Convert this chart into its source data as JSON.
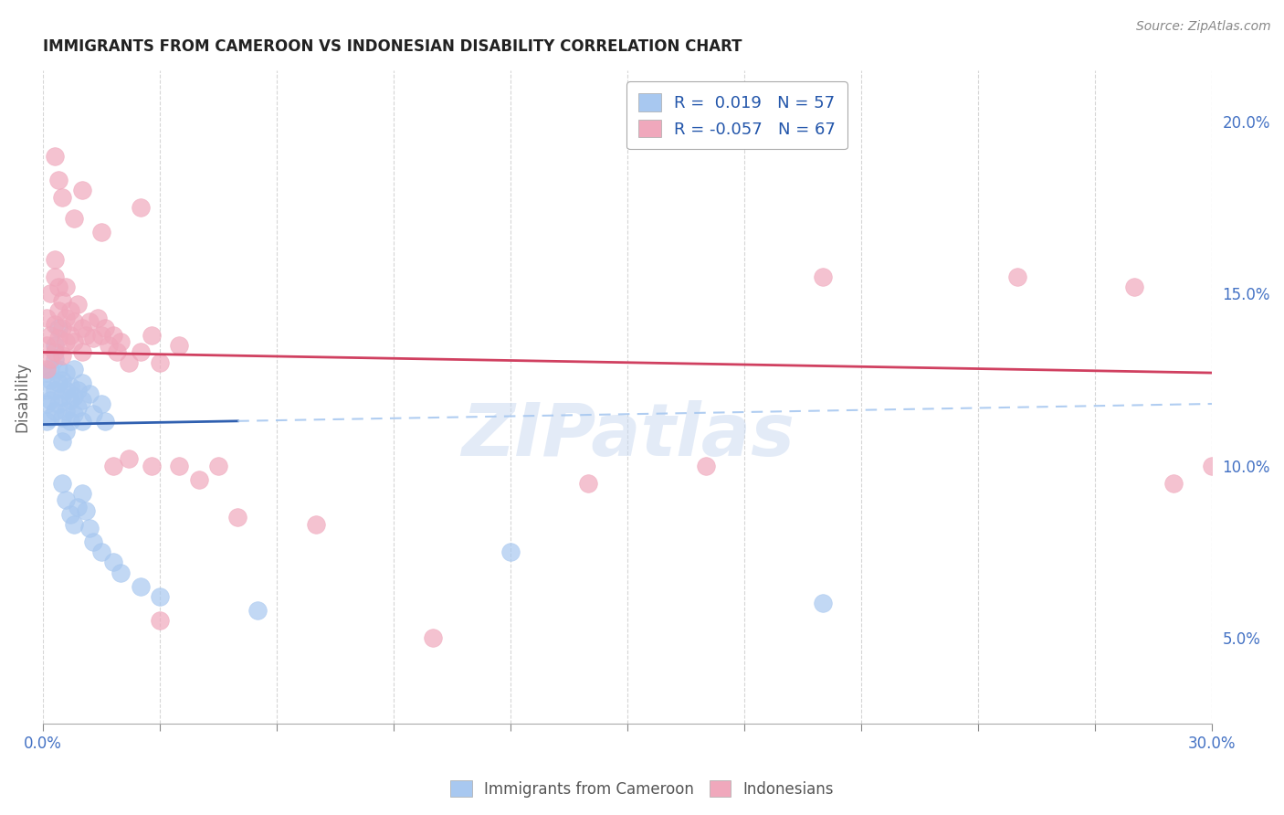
{
  "title": "IMMIGRANTS FROM CAMEROON VS INDONESIAN DISABILITY CORRELATION CHART",
  "source": "Source: ZipAtlas.com",
  "ylabel": "Disability",
  "ylabel_right_ticks": [
    "5.0%",
    "10.0%",
    "15.0%",
    "20.0%"
  ],
  "ylabel_right_vals": [
    0.05,
    0.1,
    0.15,
    0.2
  ],
  "xmin": 0.0,
  "xmax": 0.3,
  "ymin": 0.025,
  "ymax": 0.215,
  "color_blue": "#A8C8F0",
  "color_pink": "#F0A8BC",
  "trend_blue_solid": "#3060B0",
  "trend_pink_solid": "#D04060",
  "trend_blue_dashed": "#A8C8F0",
  "blue_trend_x0": 0.0,
  "blue_trend_y0": 0.112,
  "blue_trend_x1": 0.3,
  "blue_trend_y1": 0.118,
  "pink_trend_x0": 0.0,
  "pink_trend_y0": 0.133,
  "pink_trend_x1": 0.3,
  "pink_trend_y1": 0.127,
  "blue_scatter": [
    [
      0.001,
      0.127
    ],
    [
      0.001,
      0.122
    ],
    [
      0.001,
      0.118
    ],
    [
      0.001,
      0.113
    ],
    [
      0.002,
      0.125
    ],
    [
      0.002,
      0.119
    ],
    [
      0.002,
      0.114
    ],
    [
      0.002,
      0.128
    ],
    [
      0.003,
      0.122
    ],
    [
      0.003,
      0.116
    ],
    [
      0.003,
      0.131
    ],
    [
      0.003,
      0.135
    ],
    [
      0.004,
      0.124
    ],
    [
      0.004,
      0.118
    ],
    [
      0.004,
      0.128
    ],
    [
      0.004,
      0.14
    ],
    [
      0.005,
      0.12
    ],
    [
      0.005,
      0.114
    ],
    [
      0.005,
      0.125
    ],
    [
      0.005,
      0.107
    ],
    [
      0.006,
      0.122
    ],
    [
      0.006,
      0.116
    ],
    [
      0.006,
      0.127
    ],
    [
      0.006,
      0.11
    ],
    [
      0.007,
      0.119
    ],
    [
      0.007,
      0.113
    ],
    [
      0.007,
      0.123
    ],
    [
      0.008,
      0.115
    ],
    [
      0.008,
      0.12
    ],
    [
      0.008,
      0.128
    ],
    [
      0.009,
      0.117
    ],
    [
      0.009,
      0.122
    ],
    [
      0.01,
      0.119
    ],
    [
      0.01,
      0.124
    ],
    [
      0.01,
      0.113
    ],
    [
      0.012,
      0.121
    ],
    [
      0.013,
      0.115
    ],
    [
      0.015,
      0.118
    ],
    [
      0.016,
      0.113
    ],
    [
      0.005,
      0.095
    ],
    [
      0.006,
      0.09
    ],
    [
      0.007,
      0.086
    ],
    [
      0.008,
      0.083
    ],
    [
      0.009,
      0.088
    ],
    [
      0.01,
      0.092
    ],
    [
      0.011,
      0.087
    ],
    [
      0.012,
      0.082
    ],
    [
      0.013,
      0.078
    ],
    [
      0.015,
      0.075
    ],
    [
      0.018,
      0.072
    ],
    [
      0.02,
      0.069
    ],
    [
      0.025,
      0.065
    ],
    [
      0.03,
      0.062
    ],
    [
      0.055,
      0.058
    ],
    [
      0.12,
      0.075
    ],
    [
      0.2,
      0.06
    ]
  ],
  "pink_scatter": [
    [
      0.001,
      0.135
    ],
    [
      0.001,
      0.128
    ],
    [
      0.001,
      0.143
    ],
    [
      0.002,
      0.138
    ],
    [
      0.002,
      0.131
    ],
    [
      0.002,
      0.15
    ],
    [
      0.003,
      0.141
    ],
    [
      0.003,
      0.133
    ],
    [
      0.003,
      0.155
    ],
    [
      0.003,
      0.16
    ],
    [
      0.004,
      0.145
    ],
    [
      0.004,
      0.137
    ],
    [
      0.004,
      0.152
    ],
    [
      0.005,
      0.148
    ],
    [
      0.005,
      0.14
    ],
    [
      0.005,
      0.132
    ],
    [
      0.006,
      0.143
    ],
    [
      0.006,
      0.136
    ],
    [
      0.006,
      0.152
    ],
    [
      0.007,
      0.138
    ],
    [
      0.007,
      0.145
    ],
    [
      0.008,
      0.142
    ],
    [
      0.008,
      0.136
    ],
    [
      0.009,
      0.147
    ],
    [
      0.01,
      0.14
    ],
    [
      0.01,
      0.133
    ],
    [
      0.011,
      0.138
    ],
    [
      0.012,
      0.142
    ],
    [
      0.013,
      0.137
    ],
    [
      0.014,
      0.143
    ],
    [
      0.015,
      0.138
    ],
    [
      0.016,
      0.14
    ],
    [
      0.017,
      0.135
    ],
    [
      0.018,
      0.138
    ],
    [
      0.019,
      0.133
    ],
    [
      0.02,
      0.136
    ],
    [
      0.022,
      0.13
    ],
    [
      0.025,
      0.133
    ],
    [
      0.028,
      0.138
    ],
    [
      0.03,
      0.13
    ],
    [
      0.035,
      0.135
    ],
    [
      0.003,
      0.19
    ],
    [
      0.004,
      0.183
    ],
    [
      0.005,
      0.178
    ],
    [
      0.008,
      0.172
    ],
    [
      0.01,
      0.18
    ],
    [
      0.015,
      0.168
    ],
    [
      0.025,
      0.175
    ],
    [
      0.018,
      0.1
    ],
    [
      0.022,
      0.102
    ],
    [
      0.028,
      0.1
    ],
    [
      0.035,
      0.1
    ],
    [
      0.04,
      0.096
    ],
    [
      0.045,
      0.1
    ],
    [
      0.05,
      0.085
    ],
    [
      0.07,
      0.083
    ],
    [
      0.03,
      0.055
    ],
    [
      0.1,
      0.05
    ],
    [
      0.14,
      0.095
    ],
    [
      0.17,
      0.1
    ],
    [
      0.2,
      0.155
    ],
    [
      0.25,
      0.155
    ],
    [
      0.28,
      0.152
    ],
    [
      0.29,
      0.095
    ],
    [
      0.3,
      0.1
    ]
  ]
}
